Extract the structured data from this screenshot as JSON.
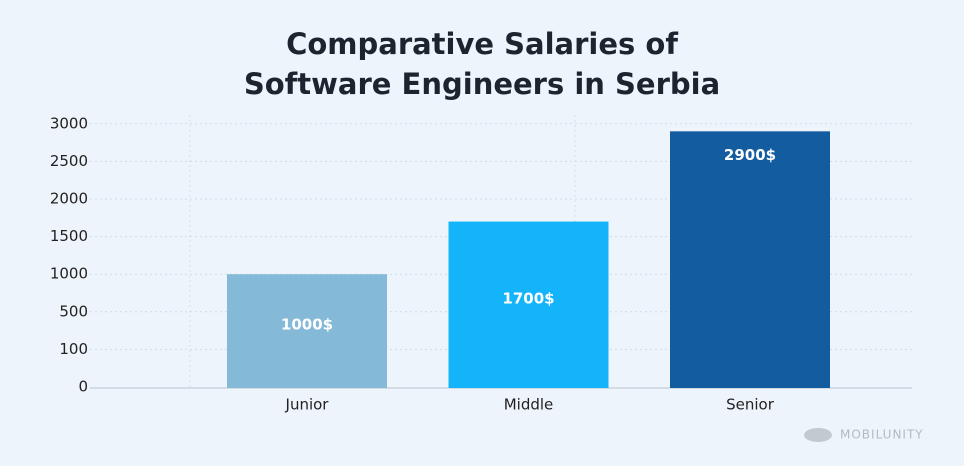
{
  "chart_data": {
    "type": "bar",
    "title": "Comparative Salaries of Software Engineers in Serbia",
    "categories": [
      "Junior",
      "Middle",
      "Senior"
    ],
    "values": [
      1000,
      1700,
      2900
    ],
    "value_labels": [
      "1000$",
      "1700$",
      "2900$"
    ],
    "colors": [
      "#85b9d8",
      "#14b4fa",
      "#145ca0"
    ],
    "ylim": [
      0,
      3000
    ],
    "yticks": [
      0,
      100,
      500,
      1000,
      1500,
      2000,
      2500,
      3000
    ],
    "grid": true,
    "watermark": "MOBILUNITY"
  }
}
